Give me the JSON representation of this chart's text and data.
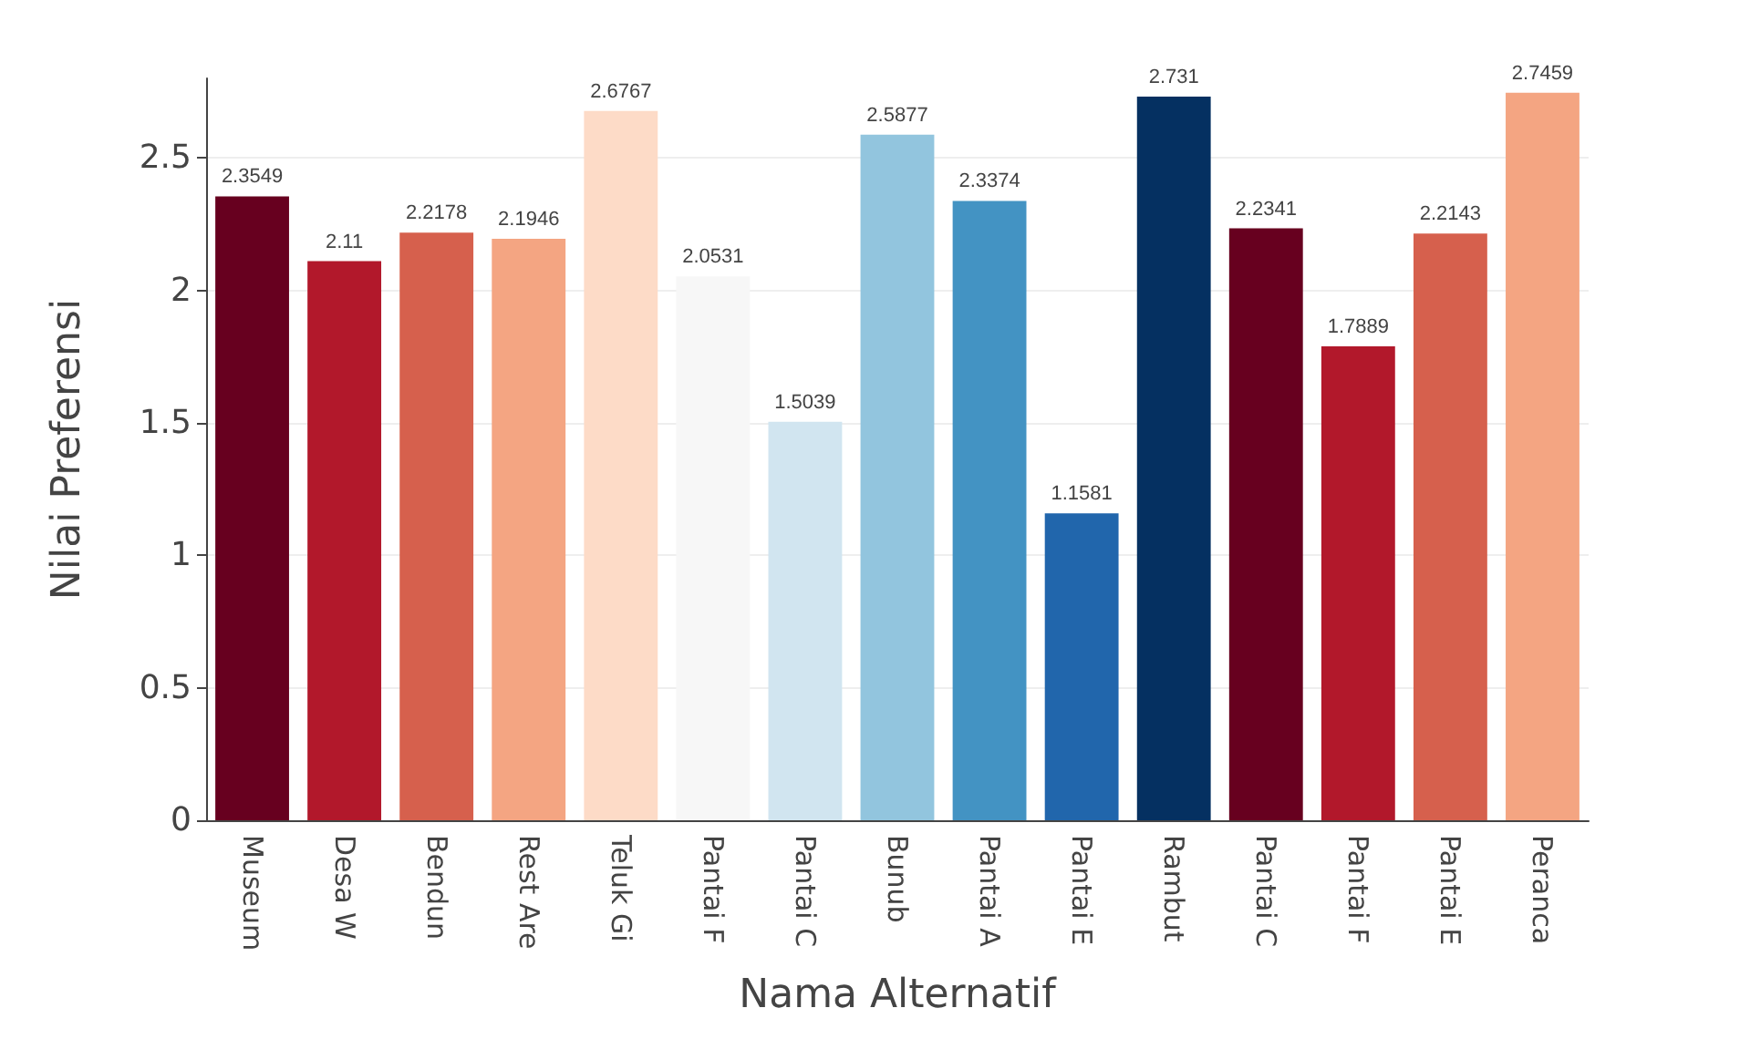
{
  "chart_data": {
    "type": "bar",
    "xlabel": "Nama Alternatif",
    "ylabel": "Nilai Preferensi",
    "categories": [
      "Museum",
      "Desa W",
      "Bendun",
      "Rest Are",
      "Teluk Gi",
      "Pantai F",
      "Pantai C",
      "Bunub",
      "Pantai A",
      "Pantai E",
      "Rambut",
      "Pantai C",
      "Pantai F",
      "Pantai E",
      "Peranca"
    ],
    "values": [
      2.3549,
      2.11,
      2.2178,
      2.1946,
      2.6767,
      2.0531,
      1.5039,
      2.5877,
      2.3374,
      1.1581,
      2.731,
      2.2341,
      1.7889,
      2.2143,
      2.7459
    ],
    "colors": [
      "#67001f",
      "#b2182b",
      "#d6604d",
      "#f4a582",
      "#fddbc7",
      "#f7f7f7",
      "#d1e5f0",
      "#92c5de",
      "#4393c3",
      "#2166ac",
      "#053061",
      "#67001f",
      "#b2182b",
      "#d6604d",
      "#f4a582"
    ],
    "data_labels": true,
    "ylim": [
      0,
      2.8
    ],
    "yticks": [
      0,
      0.5,
      1,
      1.5,
      2,
      2.5
    ],
    "grid": "y"
  }
}
